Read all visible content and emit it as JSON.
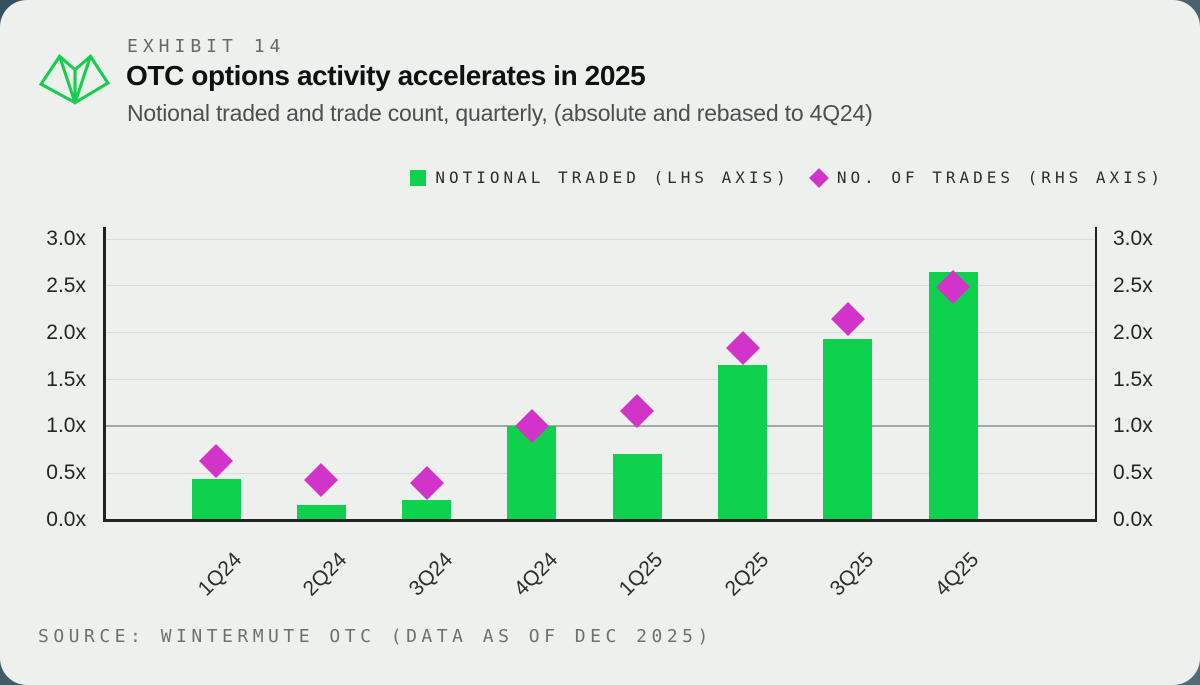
{
  "page": {
    "outer_bg": "#47616c",
    "card_bg": "#edf0ed"
  },
  "header": {
    "exhibit_label": "EXHIBIT 14",
    "title": "OTC options activity accelerates in 2025",
    "subtitle": "Notional traded and trade count, quarterly, (absolute and rebased to 4Q24)",
    "logo": "wintermute-logo",
    "logo_color": "#17cd4d"
  },
  "legend": [
    {
      "label": "NOTIONAL TRADED (LHS AXIS)",
      "marker": "square",
      "color": "#0ed24e"
    },
    {
      "label": "NO. OF TRADES (RHS AXIS)",
      "marker": "diamond",
      "color": "#d233c8"
    }
  ],
  "chart_data": {
    "type": "bar",
    "categories": [
      "1Q24",
      "2Q24",
      "3Q24",
      "4Q24",
      "1Q25",
      "2Q25",
      "3Q25",
      "4Q25"
    ],
    "series": [
      {
        "name": "Notional traded (LHS axis)",
        "type": "bar",
        "axis": "left",
        "color": "#0ed24e",
        "values": [
          0.44,
          0.16,
          0.21,
          1.0,
          0.7,
          1.65,
          1.93,
          2.65
        ]
      },
      {
        "name": "No. of trades (RHS axis)",
        "type": "scatter-diamond",
        "axis": "right",
        "color": "#d233c8",
        "values": [
          0.63,
          0.43,
          0.4,
          1.0,
          1.16,
          1.84,
          2.15,
          2.49
        ]
      }
    ],
    "y_ticks": [
      "3.0x",
      "2.5x",
      "2.0x",
      "1.5x",
      "1.0x",
      "0.5x",
      "0.0x"
    ],
    "ylim": [
      0,
      3
    ],
    "emphasized_gridline": "1.0x",
    "grid": true,
    "dual_axis": true,
    "legend_position": "top-right"
  },
  "footer": {
    "source": "SOURCE: WINTERMUTE OTC (DATA AS OF DEC 2025)"
  }
}
